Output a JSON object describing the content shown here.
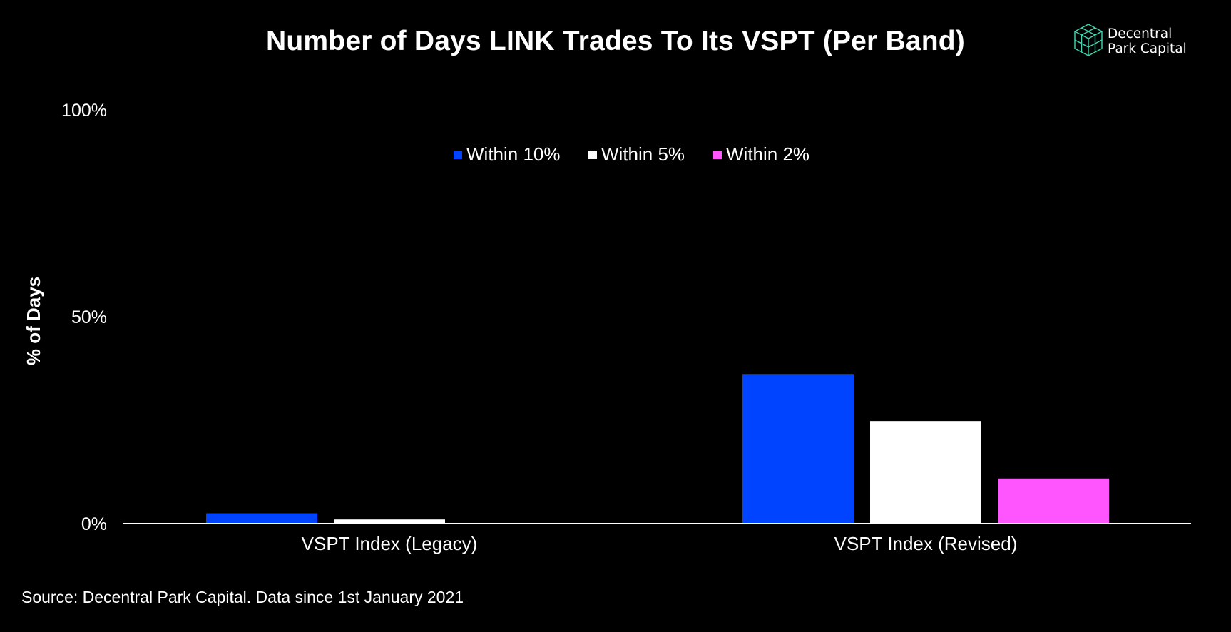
{
  "title": "Number of Days LINK Trades To Its VSPT (Per Band)",
  "logo": {
    "line1": "Decentral",
    "line2": "Park Capital",
    "icon": "cube-logo-icon",
    "color": "#3fd8b0"
  },
  "source": "Source: Decentral Park Capital. Data since 1st January 2021",
  "colors": {
    "background": "#000000",
    "within10": "#0044ff",
    "within5": "#ffffff",
    "within2": "#ff55ff"
  },
  "chart_data": {
    "type": "bar",
    "title": "Number of Days LINK Trades To Its VSPT (Per Band)",
    "xlabel": "",
    "ylabel": "% of Days",
    "ylim": [
      0,
      100
    ],
    "yticks": [
      0,
      50,
      100
    ],
    "ytick_labels": [
      "0%",
      "50%",
      "100%"
    ],
    "grid": false,
    "legend_position": "top-center",
    "categories": [
      "VSPT Index (Legacy)",
      "VSPT Index (Revised)"
    ],
    "series": [
      {
        "name": "Within 10%",
        "color": "#0044ff",
        "values": [
          2.5,
          36
        ]
      },
      {
        "name": "Within 5%",
        "color": "#ffffff",
        "values": [
          1,
          24.8
        ]
      },
      {
        "name": "Within 2%",
        "color": "#ff55ff",
        "values": [
          0,
          10.9
        ]
      }
    ]
  }
}
